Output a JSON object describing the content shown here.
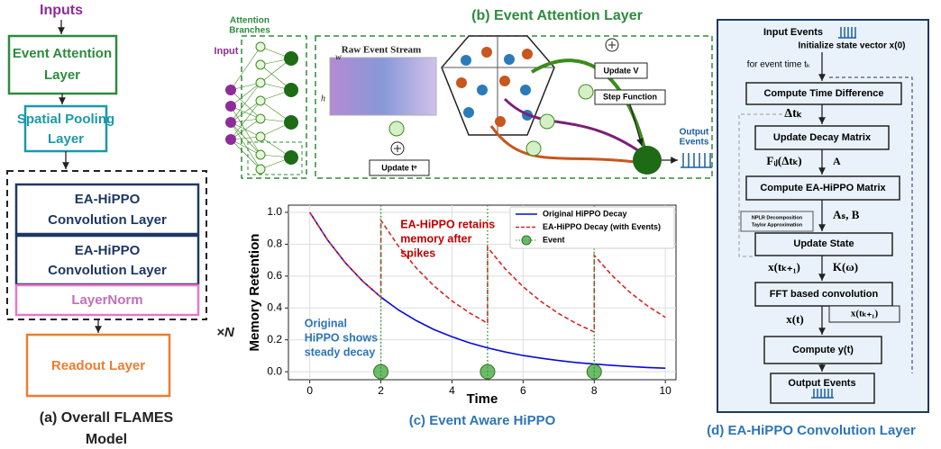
{
  "panel_a": {
    "inputs": "Inputs",
    "event_attention": [
      "Event  Attention",
      "Layer"
    ],
    "spatial_pooling": [
      "Spatial Pooling",
      "Layer"
    ],
    "conv_1": [
      "EA-HiPPO",
      "Convolution Layer"
    ],
    "conv_2": [
      "EA-HiPPO",
      "Convolution Layer"
    ],
    "layernorm": "LayerNorm",
    "repeat": "×N",
    "readout": "Readout Layer",
    "caption": [
      "(a)  Overall FLAMES",
      "Model"
    ]
  },
  "panel_b": {
    "title": "(b) Event Attention Layer",
    "branches": [
      "Attention",
      "Branches"
    ],
    "input": "Input",
    "stream": "Raw Event Stream",
    "w": "w",
    "h": "h",
    "update_v": "Update V",
    "step": "Step Function",
    "update_t": "Update tᵉ",
    "output": [
      "Output",
      "Events"
    ]
  },
  "chart_data": {
    "type": "line",
    "caption": "(c) Event Aware HiPPO",
    "xlabel": "Time",
    "ylabel": "Memory Retention",
    "x": [
      0,
      0.5,
      1,
      1.5,
      2,
      2,
      2.5,
      3,
      3.5,
      4,
      4.5,
      5,
      5,
      5.5,
      6,
      6.5,
      7,
      7.5,
      8,
      8,
      8.5,
      9,
      9.5,
      10
    ],
    "series": [
      {
        "name": "Original HiPPO Decay",
        "color": "#0a0ad8",
        "style": "solid",
        "values": [
          1,
          0.827,
          0.684,
          0.566,
          0.468,
          0.468,
          0.387,
          0.32,
          0.264,
          0.219,
          0.181,
          0.15,
          0.15,
          0.124,
          0.102,
          0.085,
          0.07,
          0.058,
          0.048,
          0.048,
          0.04,
          0.033,
          0.027,
          0.022
        ]
      },
      {
        "name": "EA-HiPPO Decay (with Events)",
        "color": "#d62728",
        "style": "dashed",
        "values": [
          1,
          0.827,
          0.684,
          0.566,
          0.468,
          0.95,
          0.786,
          0.65,
          0.537,
          0.444,
          0.368,
          0.304,
          0.78,
          0.645,
          0.533,
          0.441,
          0.365,
          0.302,
          0.249,
          0.73,
          0.604,
          0.499,
          0.413,
          0.341
        ]
      },
      {
        "name": "Event",
        "color": "#2ca02c",
        "style": "event",
        "x": [
          2,
          5,
          8
        ],
        "values": [
          0,
          0,
          0
        ]
      }
    ],
    "annotations": [
      {
        "text": [
          "EA-HiPPO retains",
          "memory after",
          "spikes"
        ],
        "color": "#c00000",
        "x": 2.55,
        "y": 0.92
      },
      {
        "text": [
          "Original",
          "HiPPO shows",
          "steady decay"
        ],
        "color": "#2e75b6",
        "x": -0.15,
        "y": 0.3
      }
    ],
    "xlim": [
      -0.6,
      10.3
    ],
    "ylim": [
      -0.05,
      1.045
    ],
    "xticks": [
      0,
      2,
      4,
      6,
      8,
      10
    ],
    "yticks": [
      {
        "value": 0,
        "label": "0.0"
      },
      0.2,
      0.4,
      0.6,
      0.8,
      {
        "value": 1,
        "label": "1.0"
      }
    ],
    "grid": true,
    "legend": "upper right"
  },
  "panel_d": {
    "input_events": "Input Events",
    "init": "Initialize state vector x(0)",
    "for_event": "for event  time tₖ",
    "steps": [
      "Compute Time Difference",
      "Update Decay Matrix",
      "Compute EA-HiPPO Matrix",
      "Update State",
      "FFT based convolution",
      "Compute  y(t)",
      "Output Events"
    ],
    "dt": "Δtₖ",
    "fij": "Fᵢⱼ(Δtₖ)",
    "a": "A",
    "asb": "Aₛ, B",
    "nplr": [
      "NPLR Decomposition",
      "Taylor Approximation"
    ],
    "xk1": "x(tₖ₊₁)",
    "k": "K(ω)",
    "xt": "x(t)",
    "xk1b": "x(tₖ₊₁)",
    "caption": "(d) EA-HiPPO Convolution Layer"
  }
}
